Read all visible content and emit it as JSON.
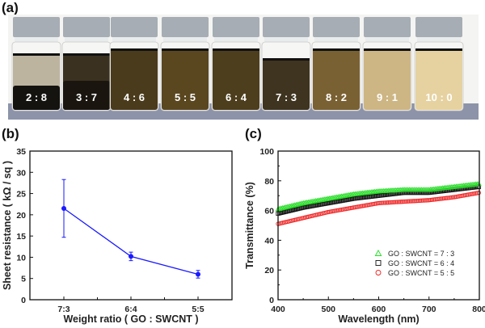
{
  "panels": {
    "a": "(a)",
    "b": "(b)",
    "c": "(c)"
  },
  "photo": {
    "vials": [
      {
        "label": "2 : 8",
        "color": "#bdb4a0",
        "sediment": "#151310"
      },
      {
        "label": "3 : 7",
        "color": "#3a3120",
        "sediment": "#1a160f"
      },
      {
        "label": "4 : 6",
        "color": "#4a3b1c",
        "sediment": null
      },
      {
        "label": "5 : 5",
        "color": "#5a4720",
        "sediment": null
      },
      {
        "label": "6 : 4",
        "color": "#4d3e1e",
        "sediment": null
      },
      {
        "label": "7 : 3",
        "color": "#3f3420",
        "sediment": null
      },
      {
        "label": "8 : 2",
        "color": "#7a6133",
        "sediment": null
      },
      {
        "label": "9 : 1",
        "color": "#cdb584",
        "sediment": null
      },
      {
        "label": "10 : 0",
        "color": "#e6d2a0",
        "sediment": null
      }
    ]
  },
  "chart_data": [
    {
      "type": "line",
      "title": "",
      "xlabel": "Weight ratio ( GO : SWCNT )",
      "ylabel": "Sheet resistance ( kΩ / sq )",
      "categories": [
        "7:3",
        "6:4",
        "5:5"
      ],
      "values": [
        21.5,
        10.2,
        6.0
      ],
      "error": [
        6.8,
        1.0,
        0.9
      ],
      "ylim": [
        0,
        35
      ],
      "yticks": [
        "0",
        "5",
        "10",
        "15",
        "20",
        "25",
        "30",
        "35"
      ],
      "color": "#1a1aff"
    },
    {
      "type": "scatter",
      "title": "",
      "xlabel": "Wavelength (nm)",
      "ylabel": "Transmittance (%)",
      "xlim": [
        400,
        800
      ],
      "ylim": [
        0,
        100
      ],
      "xticks": [
        "400",
        "500",
        "600",
        "700",
        "800"
      ],
      "yticks": [
        "0",
        "20",
        "40",
        "60",
        "80",
        "100"
      ],
      "legend_position": "lower-right",
      "x": [
        400,
        450,
        500,
        550,
        600,
        650,
        700,
        750,
        800
      ],
      "series": [
        {
          "name": "GO : SWCNT = 7 : 3",
          "marker": "triangle",
          "color": "#22dd22",
          "values": [
            61,
            65,
            68,
            71,
            73,
            74,
            74,
            76,
            78
          ]
        },
        {
          "name": "GO : SWCNT = 6 : 4",
          "marker": "square",
          "color": "#111111",
          "values": [
            58,
            62,
            65,
            68,
            70,
            72,
            72,
            74,
            76
          ]
        },
        {
          "name": "GO : SWCNT = 5 : 5",
          "marker": "circle",
          "color": "#ee2222",
          "values": [
            51,
            55,
            59,
            62,
            65,
            66,
            67,
            69,
            72
          ]
        }
      ]
    }
  ]
}
